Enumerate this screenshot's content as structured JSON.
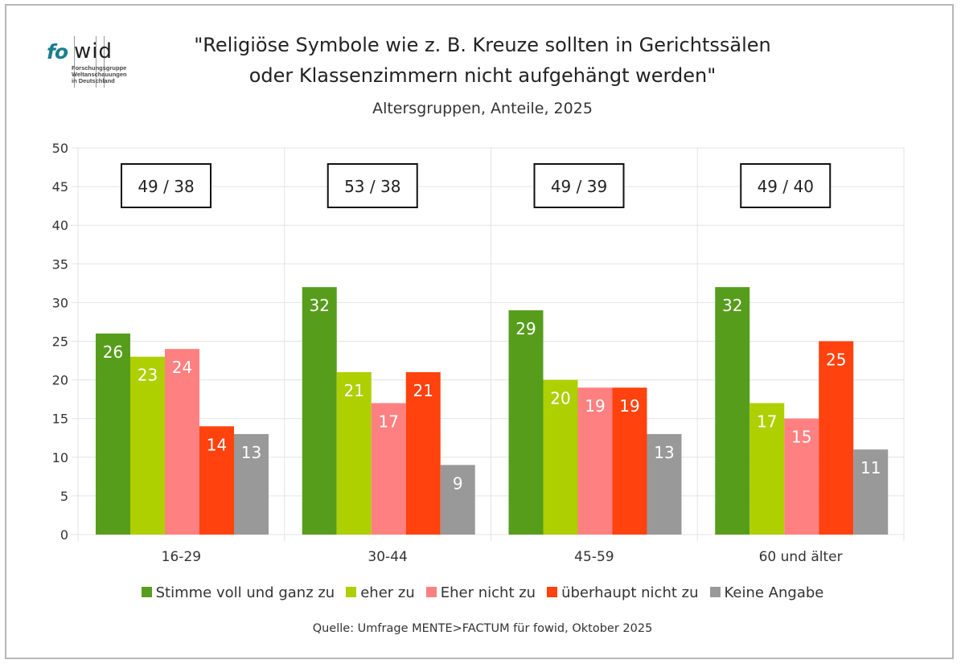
{
  "logo": {
    "part1": "fo",
    "part2": "wid",
    "subtitle_lines": [
      "Forschungsgruppe",
      "Weltanschauungen",
      "in Deutschland"
    ]
  },
  "chart_data": {
    "type": "bar",
    "title_lines": [
      "\"Religiöse Symbole wie z. B. Kreuze sollten in Gerichtssälen",
      "oder Klassenzimmern nicht aufgehängt werden\""
    ],
    "subtitle": "Altersgruppen, Anteile, 2025",
    "xlabel": "",
    "ylabel": "",
    "ylim": [
      0,
      50
    ],
    "yticks": [
      0,
      5,
      10,
      15,
      20,
      25,
      30,
      35,
      40,
      45,
      50
    ],
    "grid": true,
    "legend_position": "bottom",
    "categories": [
      "16-29",
      "30-44",
      "45-59",
      "60 und älter"
    ],
    "series": [
      {
        "name": "Stimme voll und ganz zu",
        "color": "#579d1c",
        "values": [
          26,
          32,
          29,
          32
        ]
      },
      {
        "name": "eher zu",
        "color": "#aecf00",
        "values": [
          23,
          21,
          20,
          17
        ]
      },
      {
        "name": "Eher nicht zu",
        "color": "#ff8080",
        "values": [
          24,
          17,
          19,
          15
        ]
      },
      {
        "name": "überhaupt nicht zu",
        "color": "#ff420e",
        "values": [
          14,
          21,
          19,
          25
        ]
      },
      {
        "name": "Keine Angabe",
        "color": "#999999",
        "values": [
          13,
          9,
          13,
          11
        ]
      }
    ],
    "annotations": [
      "49 / 38",
      "53 / 38",
      "49 / 39",
      "49 / 40"
    ],
    "source": "Quelle: Umfrage MENTE>FACTUM für fowid, Oktober 2025"
  }
}
